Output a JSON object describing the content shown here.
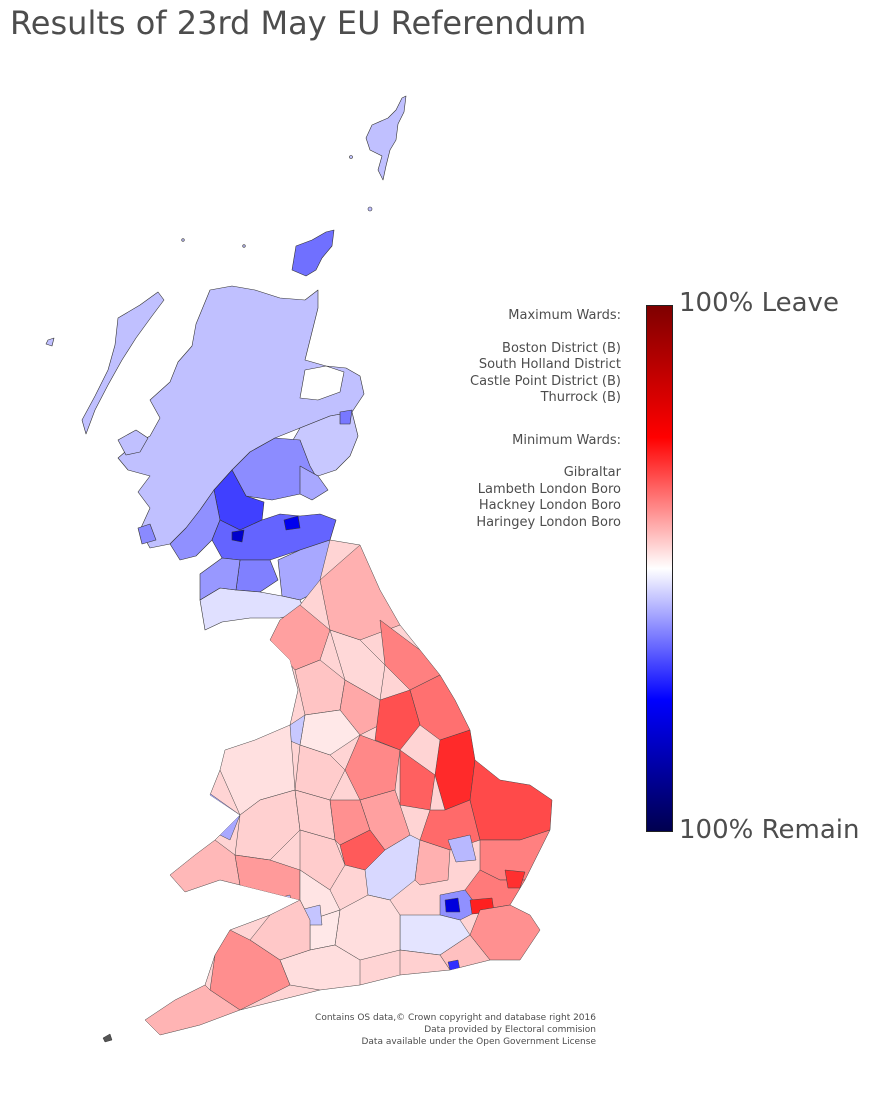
{
  "title": "Results of 23rd May EU Referendum",
  "colorbar": {
    "top_label": "100% Leave",
    "bottom_label": "100% Remain",
    "colors": [
      "#7f0000",
      "#ff0000",
      "#ffffff",
      "#0000ff",
      "#00004f"
    ]
  },
  "wards": {
    "maximum_heading": "Maximum Wards:",
    "maximum": [
      "Boston District (B)",
      "South Holland District",
      "Castle Point District (B)",
      "Thurrock (B)"
    ],
    "minimum_heading": "Minimum Wards:",
    "minimum": [
      "Gibraltar",
      "Lambeth London Boro",
      "Hackney London Boro",
      "Haringey London Boro"
    ]
  },
  "credits": [
    "Contains OS data,© Crown copyright and database right 2016",
    "Data provided by Electoral commision",
    "Data available under the Open Government License"
  ]
}
